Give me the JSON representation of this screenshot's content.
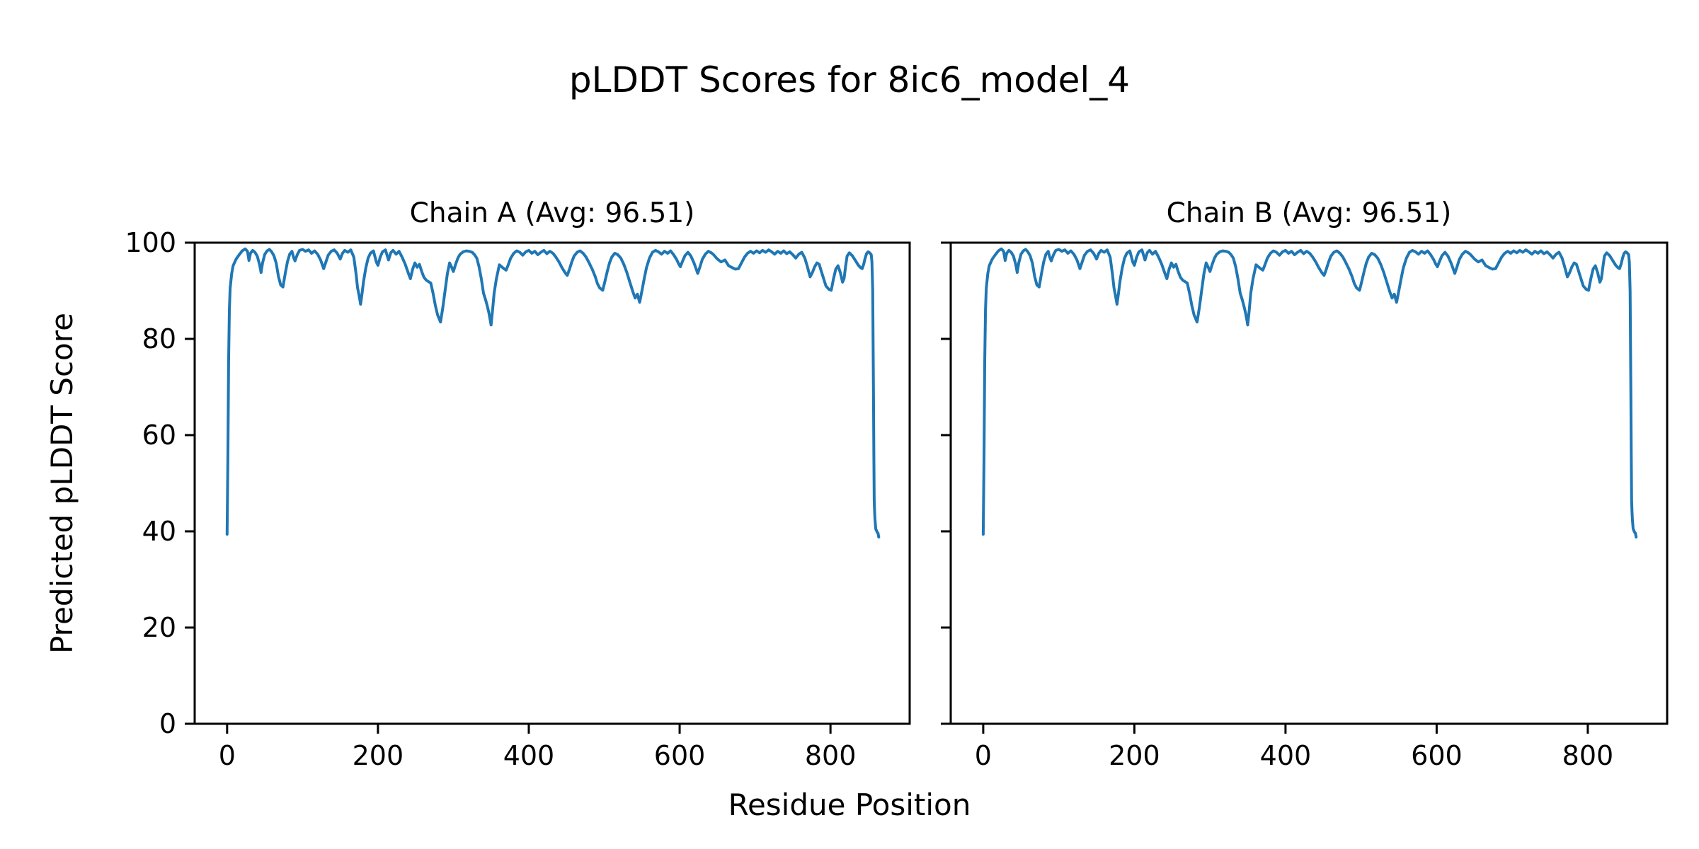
{
  "figure": {
    "suptitle": "pLDDT Scores for 8ic6_model_4"
  },
  "chart_data": {
    "type": "line",
    "suptitle": "pLDDT Scores for 8ic6_model_4",
    "xlabel": "Residue Position",
    "ylabel": "Predicted pLDDT Score",
    "line_color": "#1f77b4",
    "axis_color": "#000000",
    "background_color": "#ffffff",
    "grid": false,
    "legend_position": "none",
    "xlim": [
      -43,
      905
    ],
    "ylim": [
      0,
      100
    ],
    "xticks": [
      0,
      200,
      400,
      600,
      800
    ],
    "yticks": [
      0,
      20,
      40,
      60,
      80,
      100
    ],
    "subplots": [
      {
        "chain": "A",
        "avg_plddt": 96.51,
        "title": "Chain A (Avg: 96.51)"
      },
      {
        "chain": "B",
        "avg_plddt": 96.51,
        "title": "Chain B (Avg: 96.51)"
      }
    ],
    "series": {
      "name": "pLDDT",
      "shared_by_subplots": true,
      "points": [
        [
          0,
          39.4
        ],
        [
          1,
          55
        ],
        [
          2,
          75
        ],
        [
          3,
          86
        ],
        [
          4,
          90.5
        ],
        [
          6,
          93.5
        ],
        [
          8,
          95.2
        ],
        [
          12,
          96.6
        ],
        [
          16,
          97.5
        ],
        [
          20,
          98.3
        ],
        [
          24,
          98.7
        ],
        [
          27,
          98.2
        ],
        [
          29,
          96.3
        ],
        [
          31,
          97.8
        ],
        [
          34,
          98.4
        ],
        [
          37,
          98.0
        ],
        [
          40,
          97.2
        ],
        [
          43,
          95.5
        ],
        [
          45,
          93.8
        ],
        [
          47,
          95.8
        ],
        [
          50,
          97.6
        ],
        [
          53,
          98.3
        ],
        [
          56,
          98.6
        ],
        [
          59,
          98.1
        ],
        [
          62,
          97.3
        ],
        [
          65,
          95.8
        ],
        [
          68,
          93.0
        ],
        [
          71,
          91.2
        ],
        [
          74,
          90.8
        ],
        [
          77,
          93.5
        ],
        [
          80,
          96.0
        ],
        [
          83,
          97.6
        ],
        [
          86,
          98.2
        ],
        [
          88,
          97.0
        ],
        [
          90,
          96.2
        ],
        [
          93,
          97.5
        ],
        [
          96,
          98.4
        ],
        [
          100,
          98.6
        ],
        [
          104,
          98.2
        ],
        [
          108,
          98.5
        ],
        [
          112,
          97.8
        ],
        [
          116,
          98.3
        ],
        [
          120,
          97.6
        ],
        [
          124,
          96.4
        ],
        [
          128,
          94.6
        ],
        [
          131,
          96.0
        ],
        [
          134,
          97.4
        ],
        [
          138,
          98.2
        ],
        [
          142,
          98.5
        ],
        [
          146,
          97.8
        ],
        [
          150,
          96.6
        ],
        [
          153,
          97.8
        ],
        [
          156,
          98.4
        ],
        [
          160,
          98.0
        ],
        [
          164,
          98.5
        ],
        [
          168,
          97.0
        ],
        [
          171,
          93.5
        ],
        [
          173,
          90.6
        ],
        [
          175,
          89.0
        ],
        [
          177,
          87.2
        ],
        [
          179,
          89.5
        ],
        [
          181,
          92.0
        ],
        [
          184,
          94.8
        ],
        [
          187,
          96.8
        ],
        [
          190,
          97.8
        ],
        [
          194,
          98.3
        ],
        [
          198,
          95.9
        ],
        [
          200,
          95.3
        ],
        [
          203,
          97.0
        ],
        [
          206,
          98.1
        ],
        [
          210,
          98.5
        ],
        [
          214,
          96.4
        ],
        [
          217,
          97.9
        ],
        [
          220,
          98.4
        ],
        [
          224,
          97.6
        ],
        [
          228,
          98.2
        ],
        [
          232,
          97.0
        ],
        [
          236,
          95.6
        ],
        [
          240,
          93.8
        ],
        [
          243,
          92.5
        ],
        [
          246,
          94.5
        ],
        [
          249,
          95.8
        ],
        [
          252,
          94.9
        ],
        [
          255,
          95.5
        ],
        [
          258,
          94.0
        ],
        [
          261,
          92.8
        ],
        [
          264,
          92.2
        ],
        [
          267,
          91.9
        ],
        [
          270,
          91.6
        ],
        [
          273,
          89.5
        ],
        [
          276,
          87.0
        ],
        [
          279,
          85.0
        ],
        [
          283,
          83.5
        ],
        [
          286,
          86.5
        ],
        [
          289,
          90.0
        ],
        [
          292,
          93.5
        ],
        [
          295,
          95.8
        ],
        [
          298,
          94.8
        ],
        [
          300,
          94.0
        ],
        [
          303,
          95.5
        ],
        [
          306,
          96.8
        ],
        [
          309,
          97.6
        ],
        [
          313,
          98.1
        ],
        [
          317,
          98.3
        ],
        [
          321,
          98.2
        ],
        [
          325,
          98.0
        ],
        [
          328,
          97.5
        ],
        [
          331,
          96.8
        ],
        [
          334,
          95.0
        ],
        [
          337,
          92.5
        ],
        [
          340,
          89.5
        ],
        [
          343,
          88.0
        ],
        [
          345,
          86.8
        ],
        [
          347,
          85.5
        ],
        [
          349,
          83.8
        ],
        [
          350,
          82.9
        ],
        [
          352,
          86.0
        ],
        [
          354,
          89.5
        ],
        [
          357,
          92.5
        ],
        [
          361,
          95.4
        ],
        [
          364,
          95.0
        ],
        [
          367,
          94.6
        ],
        [
          370,
          94.3
        ],
        [
          373,
          95.5
        ],
        [
          376,
          96.8
        ],
        [
          380,
          97.8
        ],
        [
          384,
          98.3
        ],
        [
          388,
          98.0
        ],
        [
          392,
          97.4
        ],
        [
          396,
          98.1
        ],
        [
          400,
          98.4
        ],
        [
          404,
          97.8
        ],
        [
          408,
          98.2
        ],
        [
          412,
          97.5
        ],
        [
          416,
          98.0
        ],
        [
          420,
          98.4
        ],
        [
          424,
          97.7
        ],
        [
          428,
          98.2
        ],
        [
          432,
          97.8
        ],
        [
          436,
          97.0
        ],
        [
          440,
          96.0
        ],
        [
          444,
          94.8
        ],
        [
          448,
          93.8
        ],
        [
          451,
          93.2
        ],
        [
          454,
          94.5
        ],
        [
          457,
          96.0
        ],
        [
          460,
          97.2
        ],
        [
          464,
          98.0
        ],
        [
          468,
          98.3
        ],
        [
          472,
          97.8
        ],
        [
          476,
          97.0
        ],
        [
          480,
          95.8
        ],
        [
          484,
          94.5
        ],
        [
          488,
          93.0
        ],
        [
          491,
          91.5
        ],
        [
          494,
          90.6
        ],
        [
          498,
          90.1
        ],
        [
          501,
          92.0
        ],
        [
          504,
          94.0
        ],
        [
          507,
          95.8
        ],
        [
          510,
          97.0
        ],
        [
          514,
          97.8
        ],
        [
          518,
          97.5
        ],
        [
          522,
          96.8
        ],
        [
          526,
          95.5
        ],
        [
          530,
          93.8
        ],
        [
          534,
          91.8
        ],
        [
          538,
          89.8
        ],
        [
          541,
          88.5
        ],
        [
          544,
          89.3
        ],
        [
          547,
          87.6
        ],
        [
          550,
          90.0
        ],
        [
          553,
          92.5
        ],
        [
          556,
          94.8
        ],
        [
          560,
          96.8
        ],
        [
          564,
          98.0
        ],
        [
          568,
          98.4
        ],
        [
          572,
          98.1
        ],
        [
          576,
          97.6
        ],
        [
          580,
          98.2
        ],
        [
          584,
          97.8
        ],
        [
          588,
          98.3
        ],
        [
          592,
          97.5
        ],
        [
          596,
          96.5
        ],
        [
          599,
          95.5
        ],
        [
          601,
          95.0
        ],
        [
          604,
          96.2
        ],
        [
          607,
          97.3
        ],
        [
          611,
          98.0
        ],
        [
          615,
          97.2
        ],
        [
          619,
          95.8
        ],
        [
          622,
          94.5
        ],
        [
          624,
          93.6
        ],
        [
          627,
          95.0
        ],
        [
          630,
          96.5
        ],
        [
          634,
          97.6
        ],
        [
          638,
          98.2
        ],
        [
          642,
          97.9
        ],
        [
          645,
          97.5
        ],
        [
          650,
          96.6
        ],
        [
          655,
          96.0
        ],
        [
          660,
          96.4
        ],
        [
          665,
          95.2
        ],
        [
          670,
          94.8
        ],
        [
          674,
          94.5
        ],
        [
          678,
          94.6
        ],
        [
          682,
          95.8
        ],
        [
          686,
          97.0
        ],
        [
          690,
          97.8
        ],
        [
          694,
          98.2
        ],
        [
          698,
          97.8
        ],
        [
          702,
          98.3
        ],
        [
          706,
          97.9
        ],
        [
          710,
          98.4
        ],
        [
          714,
          98.0
        ],
        [
          718,
          98.5
        ],
        [
          722,
          98.1
        ],
        [
          726,
          97.6
        ],
        [
          730,
          98.2
        ],
        [
          734,
          97.8
        ],
        [
          738,
          98.3
        ],
        [
          742,
          97.7
        ],
        [
          746,
          98.1
        ],
        [
          750,
          97.5
        ],
        [
          754,
          96.8
        ],
        [
          758,
          97.6
        ],
        [
          762,
          98.0
        ],
        [
          766,
          96.8
        ],
        [
          769,
          95.2
        ],
        [
          773,
          92.9
        ],
        [
          776,
          93.8
        ],
        [
          779,
          95.0
        ],
        [
          782,
          95.8
        ],
        [
          785,
          95.5
        ],
        [
          788,
          94.0
        ],
        [
          791,
          92.5
        ],
        [
          794,
          91.0
        ],
        [
          798,
          90.3
        ],
        [
          801,
          90.1
        ],
        [
          804,
          92.5
        ],
        [
          807,
          94.5
        ],
        [
          810,
          95.2
        ],
        [
          813,
          93.8
        ],
        [
          816,
          91.8
        ],
        [
          818,
          92.5
        ],
        [
          820,
          95.0
        ],
        [
          822,
          97.2
        ],
        [
          825,
          97.9
        ],
        [
          829,
          97.3
        ],
        [
          833,
          96.3
        ],
        [
          837,
          95.3
        ],
        [
          840,
          94.8
        ],
        [
          842,
          94.6
        ],
        [
          844,
          95.5
        ],
        [
          846,
          96.8
        ],
        [
          848,
          97.8
        ],
        [
          850,
          98.1
        ],
        [
          852,
          97.9
        ],
        [
          854,
          97.5
        ],
        [
          855,
          96.0
        ],
        [
          856,
          90.0
        ],
        [
          856.5,
          80.0
        ],
        [
          857,
          68.0
        ],
        [
          857.5,
          56.0
        ],
        [
          858,
          46.5
        ],
        [
          858.5,
          44.0
        ],
        [
          859,
          42.5
        ],
        [
          860,
          40.5
        ],
        [
          862,
          39.8
        ],
        [
          863,
          39.6
        ],
        [
          864,
          38.8
        ]
      ]
    }
  }
}
